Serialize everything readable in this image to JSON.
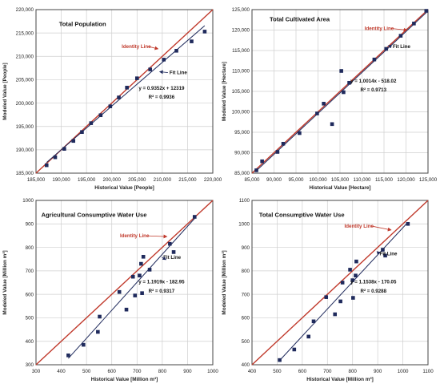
{
  "chart_data": [
    {
      "type": "scatter",
      "title": "Total Population",
      "xlabel": "Historical Value [People]",
      "ylabel": "Modeled Value [People]",
      "xlim": [
        185000,
        220000
      ],
      "ylim": [
        185000,
        220000
      ],
      "xticks": [
        185000,
        190000,
        195000,
        200000,
        205000,
        210000,
        215000,
        220000
      ],
      "yticks": [
        185000,
        190000,
        195000,
        200000,
        205000,
        210000,
        215000,
        220000
      ],
      "tick_labels_x": [
        "185,000",
        "190,000",
        "195,000",
        "200,000",
        "205,000",
        "210,000",
        "215,000",
        "220,000"
      ],
      "tick_labels_y": [
        "185,000",
        "190,000",
        "195,000",
        "200,000",
        "205,000",
        "210,000",
        "215,000",
        "220,000"
      ],
      "grid": true,
      "x": [
        187100,
        188800,
        190600,
        192400,
        194100,
        195900,
        197800,
        199700,
        201400,
        203000,
        205000,
        207600,
        210300,
        212800,
        215800,
        218400
      ],
      "y": [
        186700,
        188400,
        190200,
        191900,
        193800,
        195700,
        197400,
        199300,
        201200,
        203300,
        205300,
        207200,
        209300,
        211200,
        213200,
        215300
      ],
      "fit": {
        "slope": 0.9352,
        "intercept": 12319
      },
      "equation": "y = 0.9352x + 12319",
      "r2": "R² = 0.9936",
      "identity_label": "Identity Line",
      "fit_label": "Fit Line",
      "colors": {
        "marker": "#1f2a5c",
        "identity": "#c0392b",
        "fit": "#1f2a5c"
      }
    },
    {
      "type": "scatter",
      "title": "Total Cultivated Area",
      "xlabel": "Historical Value [Hectare]",
      "ylabel": "Modeled Value [Hectare]",
      "xlim": [
        85000,
        125000
      ],
      "ylim": [
        85000,
        125000
      ],
      "xticks": [
        85000,
        90000,
        95000,
        100000,
        105000,
        110000,
        115000,
        120000,
        125000
      ],
      "yticks": [
        85000,
        90000,
        95000,
        100000,
        105000,
        110000,
        115000,
        120000,
        125000
      ],
      "tick_labels_x": [
        "85,000",
        "90,000",
        "95,000",
        "100,000",
        "105,000",
        "110,000",
        "115,000",
        "120,000",
        "125,000"
      ],
      "tick_labels_y": [
        "85,000",
        "90,000",
        "95,000",
        "100,000",
        "105,000",
        "110,000",
        "115,000",
        "120,000",
        "125,000"
      ],
      "grid": true,
      "x": [
        86000,
        87300,
        90800,
        92100,
        95800,
        99800,
        101300,
        103200,
        105300,
        105800,
        107100,
        112800,
        115500,
        118800,
        121800,
        124600
      ],
      "y": [
        85700,
        87900,
        90200,
        92200,
        94800,
        99600,
        102000,
        97000,
        110000,
        104800,
        107100,
        112800,
        115400,
        118600,
        121600,
        124700
      ],
      "fit": {
        "slope": 1.0014,
        "intercept": -518.02
      },
      "equation": "y = 1.0014x - 518.02",
      "r2": "R² = 0.9713",
      "identity_label": "Identity Line",
      "fit_label": "Fit Line",
      "colors": {
        "marker": "#1f2a5c",
        "identity": "#c0392b",
        "fit": "#1f2a5c"
      }
    },
    {
      "type": "scatter",
      "title": "Agricultural Consumptive Water Use",
      "xlabel": "Historical Value [Million m³]",
      "ylabel": "Modeled Value [Million m³]",
      "xlim": [
        300,
        1000
      ],
      "ylim": [
        300,
        1000
      ],
      "xticks": [
        300,
        400,
        500,
        600,
        700,
        800,
        900,
        1000
      ],
      "yticks": [
        300,
        400,
        500,
        600,
        700,
        800,
        900,
        1000
      ],
      "tick_labels_x": [
        "300",
        "400",
        "500",
        "600",
        "700",
        "800",
        "900",
        "1000"
      ],
      "tick_labels_y": [
        "300",
        "400",
        "500",
        "600",
        "700",
        "800",
        "900",
        "1000"
      ],
      "grid": true,
      "x": [
        428,
        488,
        545,
        552,
        630,
        658,
        684,
        692,
        710,
        716,
        720,
        725,
        750,
        830,
        845,
        928
      ],
      "y": [
        340,
        385,
        440,
        505,
        610,
        535,
        675,
        595,
        680,
        730,
        605,
        760,
        705,
        815,
        780,
        930
      ],
      "fit": {
        "slope": 1.1919,
        "intercept": -182.95
      },
      "equation": "y = 1.1919x - 182.95",
      "r2": "R² = 0.9317",
      "identity_label": "Identity Line",
      "fit_label": "Fit Line",
      "colors": {
        "marker": "#1f2a5c",
        "identity": "#c0392b",
        "fit": "#1f2a5c"
      }
    },
    {
      "type": "scatter",
      "title": "Total Consumptive Water Use",
      "xlabel": "Historical Value [Million m³]",
      "ylabel": "Modeled Value [Million m³]",
      "xlim": [
        400,
        1100
      ],
      "ylim": [
        400,
        1100
      ],
      "xticks": [
        400,
        500,
        600,
        700,
        800,
        900,
        1000,
        1100
      ],
      "yticks": [
        400,
        500,
        600,
        700,
        800,
        900,
        1000,
        1100
      ],
      "tick_labels_x": [
        "400",
        "500",
        "600",
        "700",
        "800",
        "900",
        "1000",
        "1100"
      ],
      "tick_labels_y": [
        "400",
        "500",
        "600",
        "700",
        "800",
        "900",
        "1000",
        "1100"
      ],
      "grid": true,
      "x": [
        510,
        568,
        625,
        645,
        695,
        730,
        752,
        760,
        790,
        800,
        802,
        812,
        815,
        920,
        930,
        1020
      ],
      "y": [
        420,
        465,
        520,
        585,
        688,
        615,
        670,
        750,
        805,
        760,
        685,
        780,
        840,
        890,
        865,
        1000
      ],
      "fit": {
        "slope": 1.1538,
        "intercept": -170.05
      },
      "equation": "y = 1.1538x - 170.05",
      "r2": "R² = 0.9288",
      "identity_label": "Identity Line",
      "fit_label": "Fit Line",
      "colors": {
        "marker": "#1f2a5c",
        "identity": "#c0392b",
        "fit": "#1f2a5c"
      }
    }
  ]
}
